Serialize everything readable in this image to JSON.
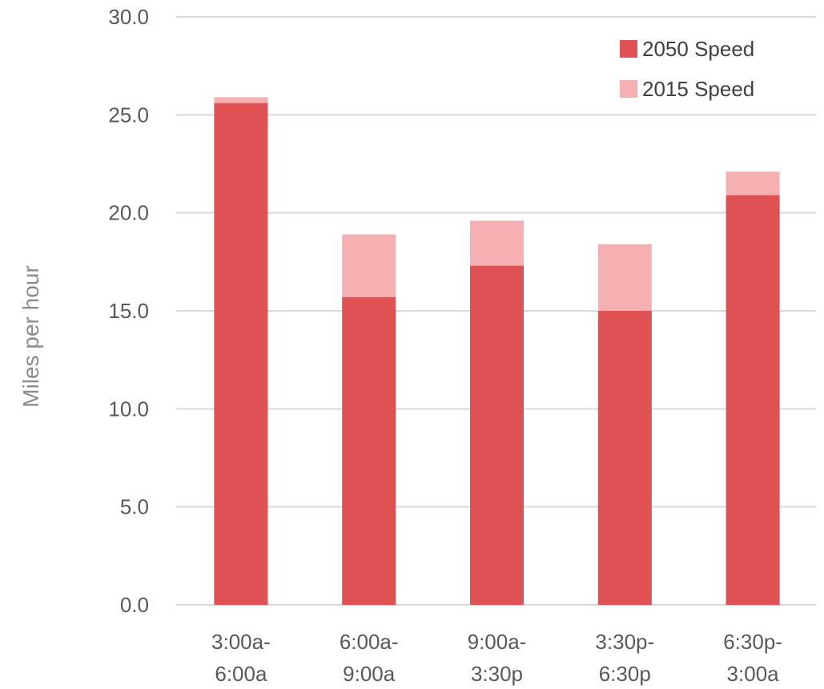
{
  "chart_data": {
    "type": "bar",
    "ylabel": "Miles per hour",
    "ylim": [
      0,
      30
    ],
    "y_ticks": [
      "0.0",
      "5.0",
      "10.0",
      "15.0",
      "20.0",
      "25.0",
      "30.0"
    ],
    "categories": [
      [
        "3:00a-",
        "6:00a"
      ],
      [
        "6:00a-",
        "9:00a"
      ],
      [
        "9:00a-",
        "3:30p"
      ],
      [
        "3:30p-",
        "6:30p"
      ],
      [
        "6:30p-",
        "3:00a"
      ]
    ],
    "series": [
      {
        "name": "2050 Speed",
        "values": [
          25.6,
          15.7,
          17.3,
          15.0,
          20.9
        ],
        "color": "#e05153"
      },
      {
        "name": "2015 Speed",
        "values": [
          25.9,
          18.9,
          19.6,
          18.4,
          22.1
        ],
        "color": "#f7b0b2"
      }
    ],
    "grid": true,
    "legend_position": "top-right"
  }
}
